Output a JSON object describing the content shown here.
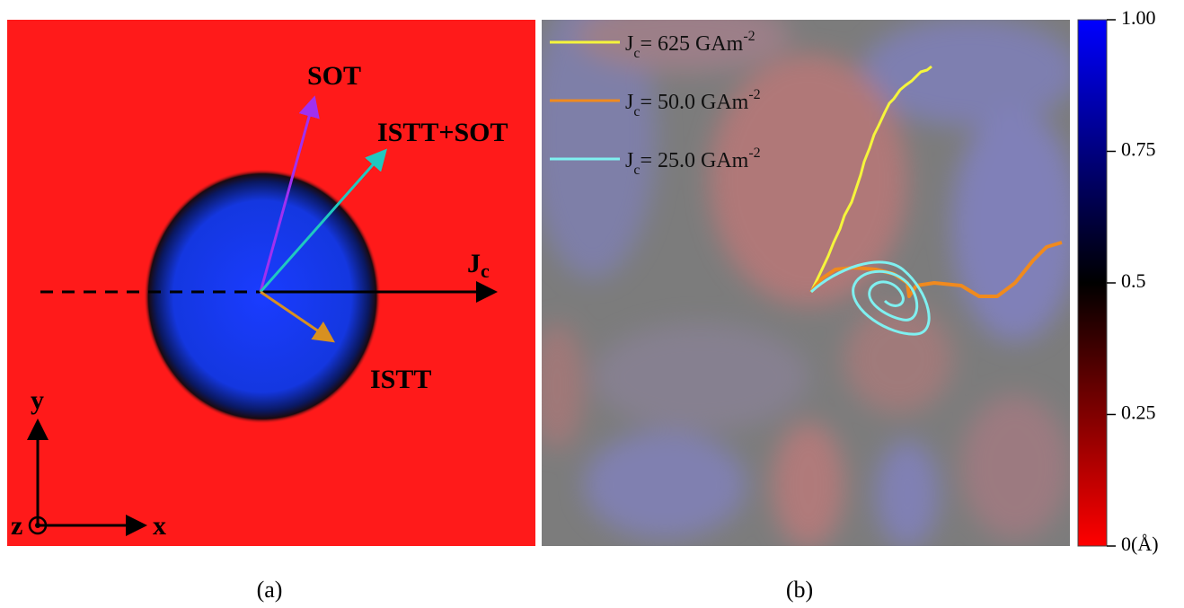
{
  "panel_a": {
    "caption": "(a)",
    "labels": {
      "sot": "SOT",
      "istt_sot": "ISTT+SOT",
      "jc": "J",
      "jc_sub": "c",
      "istt": "ISTT",
      "y": "y",
      "z": "z",
      "x": "x"
    }
  },
  "panel_b": {
    "caption": "(b)",
    "legend": [
      {
        "symbol": "J",
        "subscript": "c",
        "text": "= 625 GAm",
        "superscript": "-2",
        "color": "#f5f53c"
      },
      {
        "symbol": "J",
        "subscript": "c",
        "text": "= 50.0 GAm",
        "superscript": "-2",
        "color": "#f08a1e"
      },
      {
        "symbol": "J",
        "subscript": "c",
        "text": "= 25.0 GAm",
        "superscript": "-2",
        "color": "#7ff0f0"
      }
    ],
    "colorbar": {
      "lim": [
        0,
        1
      ],
      "ticks": [
        {
          "value": 0,
          "label": "0(Å)"
        },
        0.25,
        0.5,
        {
          "value": 0.75,
          "label": "0.75"
        },
        {
          "value": 1,
          "label": "1.00"
        }
      ]
    }
  }
}
